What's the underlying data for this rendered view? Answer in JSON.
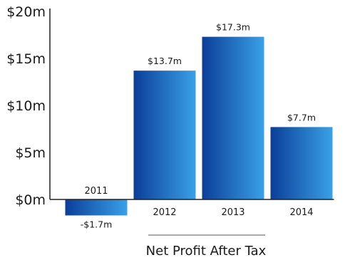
{
  "chart_data": {
    "type": "bar",
    "categories": [
      "2011",
      "2012",
      "2013",
      "2014"
    ],
    "values": [
      -1.7,
      13.7,
      17.3,
      7.7
    ],
    "data_labels": [
      "-$1.7m",
      "$13.7m",
      "$17.3m",
      "$7.7m"
    ],
    "title": "",
    "xlabel": "Net Profit After Tax",
    "ylabel": "",
    "ylim": [
      0,
      20
    ],
    "yticks": [
      0,
      5,
      10,
      15,
      20
    ],
    "ytick_labels": [
      "$0m",
      "$5m",
      "$10m",
      "$15m",
      "$20m"
    ],
    "grid": false,
    "bar_gradient": [
      "#0b3e98",
      "#3aa0e8"
    ]
  }
}
